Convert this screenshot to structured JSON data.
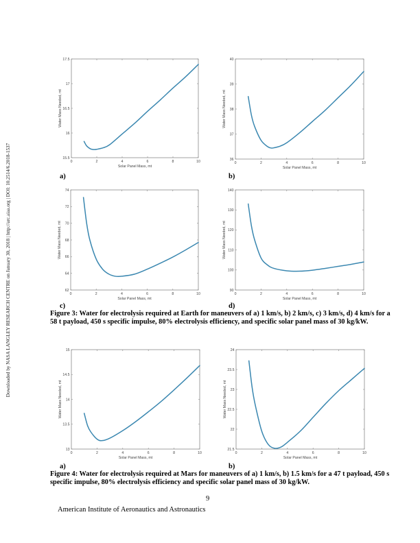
{
  "side_note": "Downloaded by NASA LANGLEY RESEARCH CENTRE on January 30, 2018 | http://arc.aiaa.org | DOI: 10.2514/6.2018-1537",
  "figure3": {
    "panel_labels": [
      "a)",
      "b)",
      "c)",
      "d)"
    ],
    "caption_line1": "Figure 3: Water for electrolysis required at Earth for maneuvers of a) 1 km/s, b) 2 km/s, c) 3 km/s, d) 4 km/s for a",
    "caption_line2": "58 t payload, 450 s specific impulse, 80% electrolysis efficiency, and specific solar panel mass of 30 kg/kW."
  },
  "figure4": {
    "panel_labels": [
      "a)",
      "b)"
    ],
    "caption_line1": "Figure 4: Water for electrolysis required at Mars for maneuvers of a) 1 km/s, b) 1.5 km/s for a 47 t payload, 450 s",
    "caption_line2": "specific impulse, 80% electrolysis efficiency and specific solar panel mass of 30 kg/kW."
  },
  "page_number": "9",
  "footer": "American Institute of Aeronautics and Astronautics",
  "line_color": "#3a87b0",
  "chart_data": [
    {
      "id": "fig3a",
      "type": "line",
      "title": "",
      "xlabel": "Solar Panel Mass, mt",
      "ylabel": "Water Mass Needed, mt",
      "xlim": [
        0,
        10
      ],
      "ylim": [
        15.5,
        17.5
      ],
      "xticks": [
        "0",
        "2",
        "4",
        "6",
        "8",
        "10"
      ],
      "yticks": [
        "15.5",
        "16",
        "16.5",
        "17",
        "17.5"
      ],
      "x": [
        1,
        1.2,
        1.5,
        1.8,
        2,
        2.5,
        3,
        4,
        5,
        6,
        7,
        8,
        9,
        10
      ],
      "series": [
        {
          "name": "1 km/s",
          "values": [
            15.83,
            15.74,
            15.68,
            15.665,
            15.67,
            15.7,
            15.76,
            15.98,
            16.2,
            16.44,
            16.67,
            16.91,
            17.14,
            17.39
          ]
        }
      ]
    },
    {
      "id": "fig3b",
      "type": "line",
      "title": "",
      "xlabel": "Solar Panel Mass, mt",
      "ylabel": "Water Mass Needed, mt",
      "xlim": [
        0,
        10
      ],
      "ylim": [
        36,
        40
      ],
      "xticks": [
        "0",
        "2",
        "4",
        "6",
        "8",
        "10"
      ],
      "yticks": [
        "36",
        "37",
        "38",
        "39",
        "40"
      ],
      "x": [
        1,
        1.25,
        1.5,
        2,
        2.5,
        2.8,
        3,
        3.5,
        4,
        5,
        6,
        7,
        8,
        9,
        10
      ],
      "series": [
        {
          "name": "2 km/s",
          "values": [
            38.5,
            37.75,
            37.3,
            36.75,
            36.5,
            36.44,
            36.45,
            36.52,
            36.65,
            37.05,
            37.5,
            37.95,
            38.45,
            38.95,
            39.5
          ]
        }
      ]
    },
    {
      "id": "fig3c",
      "type": "line",
      "title": "",
      "xlabel": "Solar Panel Mass, mt",
      "ylabel": "Water Mass Needed, mt",
      "xlim": [
        0,
        10
      ],
      "ylim": [
        62,
        74
      ],
      "xticks": [
        "0",
        "2",
        "4",
        "6",
        "8",
        "10"
      ],
      "yticks": [
        "62",
        "64",
        "66",
        "68",
        "70",
        "72",
        "74"
      ],
      "x": [
        1,
        1.25,
        1.5,
        2,
        2.5,
        3,
        3.5,
        4,
        5,
        6,
        7,
        8,
        9,
        10
      ],
      "series": [
        {
          "name": "3 km/s",
          "values": [
            73.1,
            70.0,
            68.0,
            65.7,
            64.5,
            63.9,
            63.65,
            63.65,
            63.9,
            64.5,
            65.2,
            65.95,
            66.8,
            67.7
          ]
        }
      ]
    },
    {
      "id": "fig3d",
      "type": "line",
      "title": "",
      "xlabel": "Solar Panel Mass, mt",
      "ylabel": "Water Mass Needed, mt",
      "xlim": [
        0,
        10
      ],
      "ylim": [
        90,
        140
      ],
      "xticks": [
        "0",
        "2",
        "4",
        "6",
        "8",
        "10"
      ],
      "yticks": [
        "90",
        "100",
        "110",
        "120",
        "130",
        "140"
      ],
      "x": [
        1,
        1.25,
        1.5,
        2,
        2.5,
        3,
        4,
        5,
        6,
        7,
        8,
        9,
        10
      ],
      "series": [
        {
          "name": "4 km/s",
          "values": [
            133,
            122,
            115,
            106,
            102.5,
            100.8,
            99.6,
            99.4,
            99.9,
            100.8,
            101.8,
            102.8,
            104
          ]
        }
      ]
    },
    {
      "id": "fig4a",
      "type": "line",
      "title": "",
      "xlabel": "Solar Panel Mass, mt",
      "ylabel": "Water Mass Needed, mt",
      "xlim": [
        0,
        10
      ],
      "ylim": [
        13,
        15
      ],
      "xticks": [
        "0",
        "2",
        "4",
        "6",
        "8",
        "10"
      ],
      "yticks": [
        "13",
        "13.5",
        "14",
        "14.5",
        "15"
      ],
      "x": [
        1,
        1.25,
        1.5,
        2,
        2.4,
        3,
        4,
        5,
        6,
        7,
        8,
        9,
        10
      ],
      "series": [
        {
          "name": "1 km/s",
          "values": [
            13.72,
            13.48,
            13.35,
            13.2,
            13.17,
            13.22,
            13.37,
            13.55,
            13.75,
            13.96,
            14.19,
            14.43,
            14.68
          ]
        }
      ]
    },
    {
      "id": "fig4b",
      "type": "line",
      "title": "",
      "xlabel": "Solar Panel Mass, mt",
      "ylabel": "Water Mass Needed, mt",
      "xlim": [
        0,
        10
      ],
      "ylim": [
        21.5,
        24
      ],
      "xticks": [
        "0",
        "2",
        "4",
        "6",
        "8",
        "10"
      ],
      "yticks": [
        "21.5",
        "22",
        "22.5",
        "23",
        "23.5",
        "24"
      ],
      "x": [
        1,
        1.25,
        1.5,
        2,
        2.5,
        3,
        3.5,
        4,
        5,
        6,
        7,
        8,
        9,
        10
      ],
      "series": [
        {
          "name": "1.5 km/s",
          "values": [
            23.72,
            23.05,
            22.6,
            21.95,
            21.62,
            21.52,
            21.55,
            21.67,
            21.95,
            22.3,
            22.65,
            22.97,
            23.25,
            23.53
          ]
        }
      ]
    }
  ]
}
